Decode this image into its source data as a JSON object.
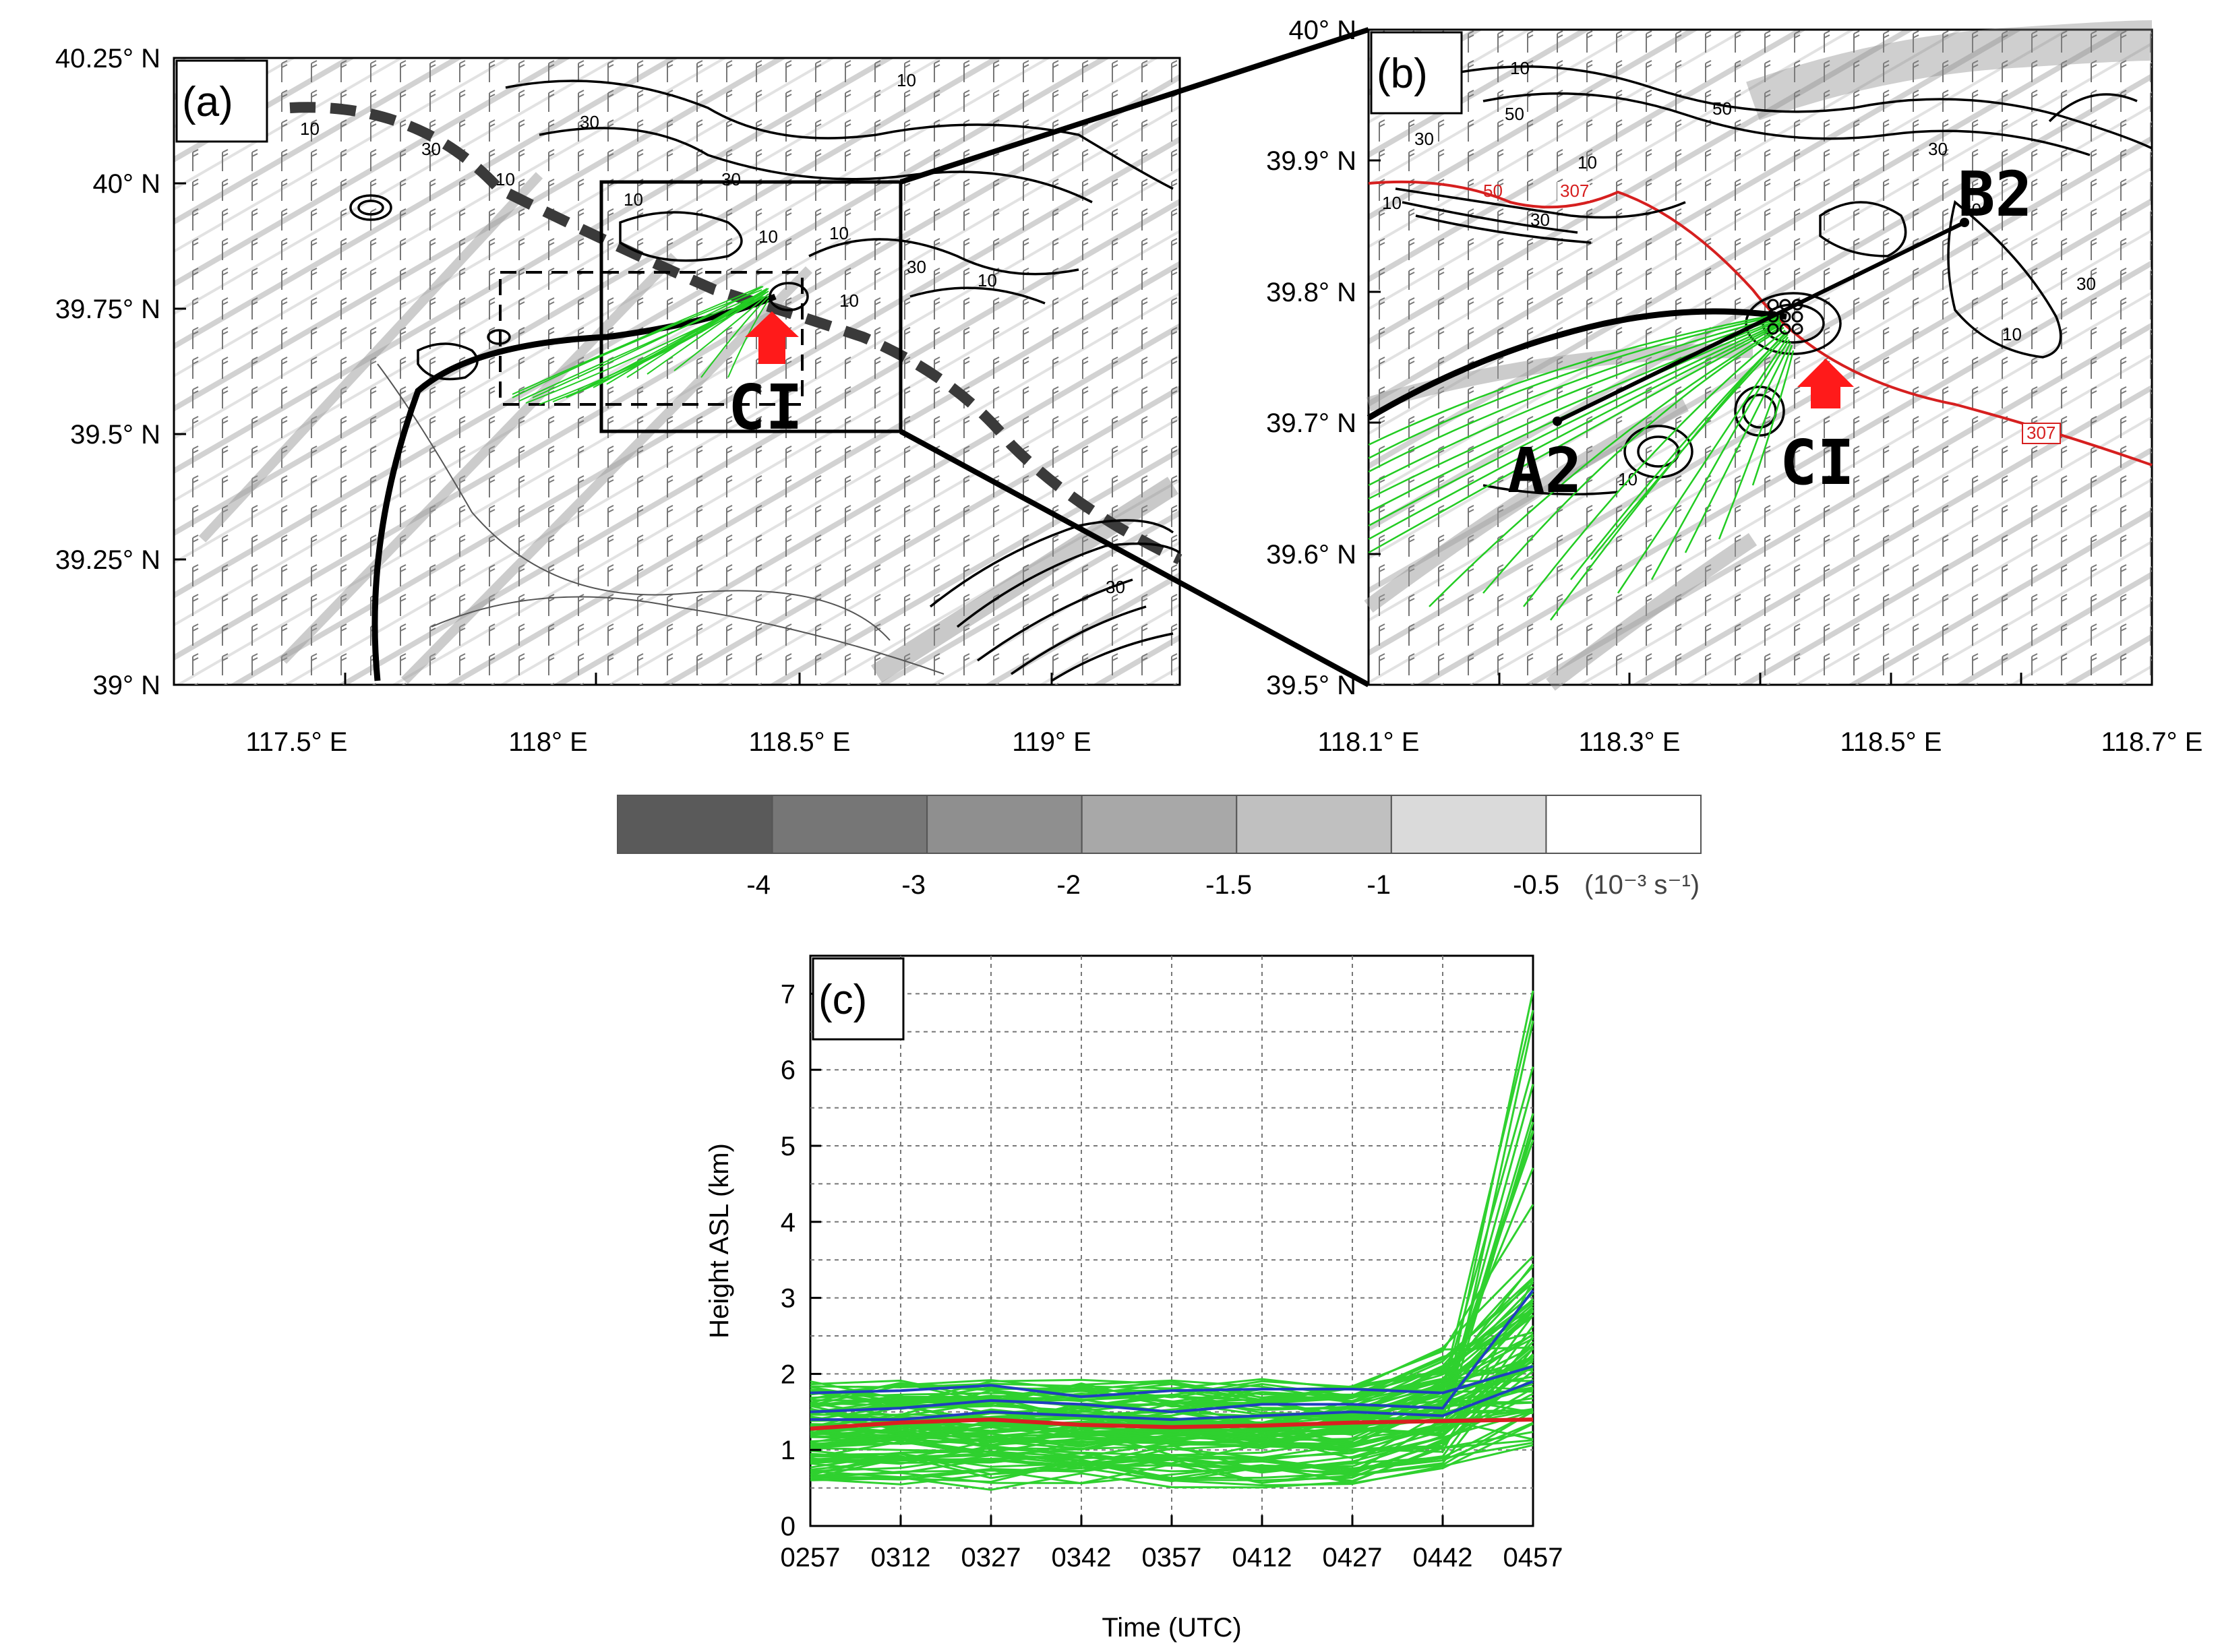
{
  "panel_a": {
    "label": "(a)",
    "lat_ticks": [
      "40.25° N",
      "40° N",
      "39.75° N",
      "39.5° N",
      "39.25° N",
      "39° N"
    ],
    "lon_ticks": [
      "117.5° E",
      "118° E",
      "118.5° E",
      "119° E"
    ],
    "contour_labels": [
      "10",
      "30",
      "30",
      "10",
      "30",
      "10",
      "10",
      "10",
      "30",
      "10",
      "10",
      "30",
      "10"
    ],
    "marker": "CI"
  },
  "panel_b": {
    "label": "(b)",
    "lat_ticks": [
      "40° N",
      "39.9° N",
      "39.8° N",
      "39.7° N",
      "39.6° N",
      "39.5° N"
    ],
    "lon_ticks": [
      "118.1° E",
      "118.3° E",
      "118.5° E",
      "118.7° E"
    ],
    "contour_labels": [
      "10",
      "50",
      "50",
      "30",
      "10",
      "30",
      "30",
      "10",
      "30",
      "10",
      "10",
      "30"
    ],
    "theta_labels": [
      "307",
      "307"
    ],
    "theta_label_red": "50",
    "point_a": "A2",
    "point_b": "B2",
    "marker": "CI"
  },
  "colorbar": {
    "tick_labels": [
      "-4",
      "-3",
      "-2",
      "-1.5",
      "-1",
      "-0.5"
    ],
    "unit": "(10⁻³ s⁻¹)",
    "colors": [
      "#5a5a5a",
      "#767676",
      "#8f8f8f",
      "#a8a8a8",
      "#c0c0c0",
      "#dadada",
      "#ffffff"
    ]
  },
  "panel_c": {
    "label": "(c)",
    "xlabel": "Time (UTC)",
    "ylabel": "Height ASL (km)",
    "chart_data": {
      "type": "line",
      "x": [
        "0257",
        "0312",
        "0327",
        "0342",
        "0357",
        "0412",
        "0427",
        "0442",
        "0457"
      ],
      "ylim": [
        0,
        7.5
      ],
      "yticks": [
        0,
        1,
        2,
        3,
        4,
        5,
        6,
        7
      ],
      "grid": true,
      "series": [
        {
          "color": "#1f3fbf",
          "values": [
            1.75,
            1.78,
            1.85,
            1.7,
            1.78,
            1.8,
            1.8,
            1.75,
            2.1
          ]
        },
        {
          "color": "#1f3fbf",
          "values": [
            1.5,
            1.55,
            1.65,
            1.6,
            1.5,
            1.6,
            1.6,
            1.55,
            3.1
          ]
        },
        {
          "color": "#1f3fbf",
          "values": [
            1.4,
            1.4,
            1.5,
            1.45,
            1.4,
            1.45,
            1.5,
            1.45,
            1.9
          ]
        },
        {
          "color": "#d92020",
          "values": [
            1.28,
            1.36,
            1.4,
            1.33,
            1.3,
            1.32,
            1.36,
            1.38,
            1.4
          ]
        }
      ]
    }
  }
}
